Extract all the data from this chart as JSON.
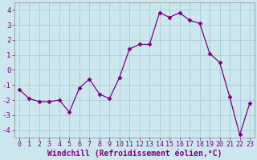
{
  "x": [
    0,
    1,
    2,
    3,
    4,
    5,
    6,
    7,
    8,
    9,
    10,
    11,
    12,
    13,
    14,
    15,
    16,
    17,
    18,
    19,
    20,
    21,
    22,
    23
  ],
  "y": [
    -1.3,
    -1.9,
    -2.1,
    -2.1,
    -2.0,
    -2.8,
    -1.2,
    -0.6,
    -1.6,
    -1.9,
    -0.5,
    1.4,
    1.7,
    1.7,
    3.8,
    3.5,
    3.8,
    3.3,
    3.1,
    1.1,
    0.5,
    -1.8,
    -4.3,
    -2.2
  ],
  "xlabel": "Windchill (Refroidissement éolien,°C)",
  "xlim": [
    -0.5,
    23.5
  ],
  "ylim": [
    -4.5,
    4.5
  ],
  "yticks": [
    -4,
    -3,
    -2,
    -1,
    0,
    1,
    2,
    3,
    4
  ],
  "xticks": [
    0,
    1,
    2,
    3,
    4,
    5,
    6,
    7,
    8,
    9,
    10,
    11,
    12,
    13,
    14,
    15,
    16,
    17,
    18,
    19,
    20,
    21,
    22,
    23
  ],
  "line_color": "#800080",
  "marker": "D",
  "marker_size": 2.5,
  "bg_color": "#cce8ee",
  "grid_color": "#aaccd4",
  "tick_color": "#800080",
  "xlabel_color": "#800080",
  "xlabel_fontsize": 7.0,
  "tick_fontsize": 6.0,
  "ytick_fontsize": 6.5
}
